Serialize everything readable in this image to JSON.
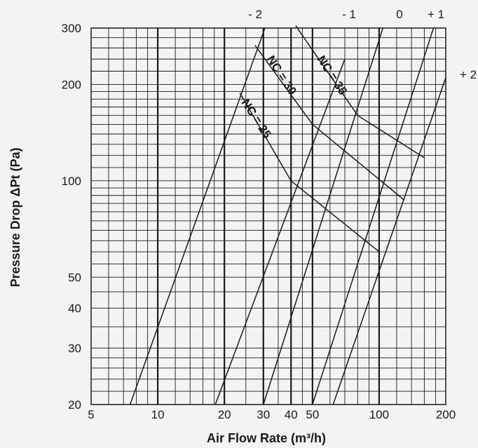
{
  "chart_data": {
    "type": "line",
    "xlabel": "Air Flow Rate (m³/h)",
    "ylabel": "Pressure Drop ΔPt (Pa)",
    "x_scale": "log",
    "y_scale": "log",
    "xlim": [
      5,
      200
    ],
    "ylim": [
      20,
      300
    ],
    "grid": true,
    "x_ticks": [
      {
        "value": 5,
        "label": "5"
      },
      {
        "value": 10,
        "label": "10"
      },
      {
        "value": 20,
        "label": "20"
      },
      {
        "value": 30,
        "label": "30"
      },
      {
        "value": 40,
        "label": "40"
      },
      {
        "value": 50,
        "label": "50"
      },
      {
        "value": 100,
        "label": "100"
      },
      {
        "value": 200,
        "label": "200"
      }
    ],
    "y_ticks": [
      {
        "value": 20,
        "label": "20"
      },
      {
        "value": 30,
        "label": "30"
      },
      {
        "value": 40,
        "label": "40"
      },
      {
        "value": 50,
        "label": "50"
      },
      {
        "value": 100,
        "label": "100"
      },
      {
        "value": 200,
        "label": "200"
      },
      {
        "value": 300,
        "label": "300"
      }
    ],
    "x_major_lines": [
      10,
      20,
      30,
      40,
      50,
      100
    ],
    "x_minor_lines": [
      6,
      7,
      8,
      9,
      12,
      14,
      16,
      18,
      25,
      35,
      45,
      60,
      70,
      80,
      90,
      120,
      140,
      160,
      180
    ],
    "y_minor_lines": [
      22,
      24,
      26,
      28,
      35,
      45,
      55,
      60,
      65,
      70,
      75,
      80,
      85,
      90,
      95,
      110,
      120,
      130,
      140,
      150,
      160,
      170,
      180,
      190,
      220,
      240,
      260,
      280
    ],
    "series": [
      {
        "name": "- 2",
        "points": [
          [
            7.5,
            20
          ],
          [
            30.5,
            300
          ]
        ]
      },
      {
        "name": "- 1",
        "points": [
          [
            18.2,
            20
          ],
          [
            70,
            240
          ]
        ]
      },
      {
        "name": "0",
        "points": [
          [
            30,
            20
          ],
          [
            104,
            300
          ]
        ]
      },
      {
        "name": "+ 1",
        "points": [
          [
            50,
            20
          ],
          [
            176,
            300
          ]
        ]
      },
      {
        "name": "+ 2",
        "points": [
          [
            62,
            20
          ],
          [
            200,
            210
          ]
        ]
      },
      {
        "name": "NC = 25",
        "points": [
          [
            23.5,
            188
          ],
          [
            40,
            100
          ],
          [
            100,
            60
          ]
        ]
      },
      {
        "name": "NC = 30",
        "points": [
          [
            27.5,
            265
          ],
          [
            50,
            150
          ],
          [
            130,
            87
          ]
        ]
      },
      {
        "name": "NC = 35",
        "points": [
          [
            42,
            305
          ],
          [
            80,
            160
          ],
          [
            160,
            118
          ]
        ]
      }
    ]
  }
}
